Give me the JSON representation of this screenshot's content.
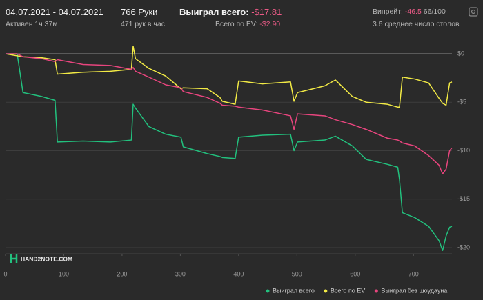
{
  "header": {
    "date_range": "04.07.2021 - 04.07.2021",
    "active": "Активен 1ч 37м",
    "hands": "766 Руки",
    "hands_per_hour": "471 рук в час",
    "won_label": "Выиграл всего:",
    "won_value": "-$17.81",
    "ev_label": "Всего по EV:",
    "ev_value": "-$2.90",
    "winrate_label": "Винрейт:",
    "winrate_value": "-46.5",
    "winrate_unit": "66/100",
    "tables": "3.6 среднее число столов",
    "logo": "HAND2NOTE.COM"
  },
  "chart_data": {
    "type": "line",
    "grid": true,
    "legend": "bottom-right",
    "x": [
      0,
      20,
      30,
      62,
      85,
      89,
      133,
      180,
      216,
      219,
      223,
      246,
      275,
      301,
      305,
      346,
      368,
      372,
      394,
      400,
      441,
      489,
      495,
      501,
      548,
      566,
      595,
      619,
      655,
      673,
      676,
      681,
      702,
      726,
      744,
      750,
      756,
      762,
      766
    ],
    "series": [
      {
        "name": "Выиграл всего",
        "color": "#22c17e",
        "values": [
          0,
          0,
          -4,
          -4.4,
          -4.8,
          -9.1,
          -9.0,
          -9.1,
          -8.9,
          -5.2,
          -5.6,
          -7.5,
          -8.3,
          -8.6,
          -9.6,
          -10.3,
          -10.6,
          -10.7,
          -10.8,
          -8.6,
          -8.4,
          -8.3,
          -10.0,
          -9.1,
          -8.9,
          -8.5,
          -9.5,
          -10.9,
          -11.4,
          -11.7,
          -13,
          -16.4,
          -16.9,
          -17.8,
          -19.3,
          -20.3,
          -18.8,
          -17.9,
          -17.81
        ]
      },
      {
        "name": "Всего по EV",
        "color": "#f2ea45",
        "values": [
          0,
          -0.2,
          -0.3,
          -0.4,
          -0.6,
          -2.1,
          -1.9,
          -1.8,
          -1.6,
          0.8,
          -0.5,
          -1.5,
          -2.3,
          -3.6,
          -3.5,
          -3.6,
          -4.5,
          -4.9,
          -5.2,
          -2.8,
          -3.1,
          -2.9,
          -4.9,
          -4.0,
          -3.3,
          -2.7,
          -4.4,
          -5.0,
          -5.2,
          -5.5,
          -5.5,
          -2.4,
          -2.6,
          -3.0,
          -4.6,
          -5.1,
          -5.3,
          -3.0,
          -2.9
        ]
      },
      {
        "name": "Выиграл без шоудауна",
        "color": "#e8457e",
        "values": [
          0,
          0,
          -0.3,
          -0.5,
          -0.8,
          -0.6,
          -1.1,
          -1.2,
          -1.6,
          -1.4,
          -1.8,
          -2.4,
          -3.2,
          -3.5,
          -3.9,
          -4.5,
          -5.1,
          -5.3,
          -5.4,
          -5.5,
          -5.8,
          -6.4,
          -7.8,
          -6.2,
          -6.4,
          -6.8,
          -7.3,
          -7.8,
          -8.7,
          -8.9,
          -9.0,
          -9.2,
          -9.5,
          -10.5,
          -11.5,
          -12.4,
          -11.9,
          -10.0,
          -9.7
        ]
      }
    ],
    "xlim": [
      0,
      766
    ],
    "xticks": [
      0,
      100,
      200,
      300,
      400,
      500,
      600,
      700
    ],
    "ylim": [
      -20.5,
      1
    ],
    "yticks": [
      {
        "value": 0,
        "label": "$0"
      },
      {
        "value": -5,
        "label": "-$5"
      },
      {
        "value": -10,
        "label": "-$10"
      },
      {
        "value": -15,
        "label": "-$15"
      },
      {
        "value": -20,
        "label": "-$20"
      }
    ]
  }
}
